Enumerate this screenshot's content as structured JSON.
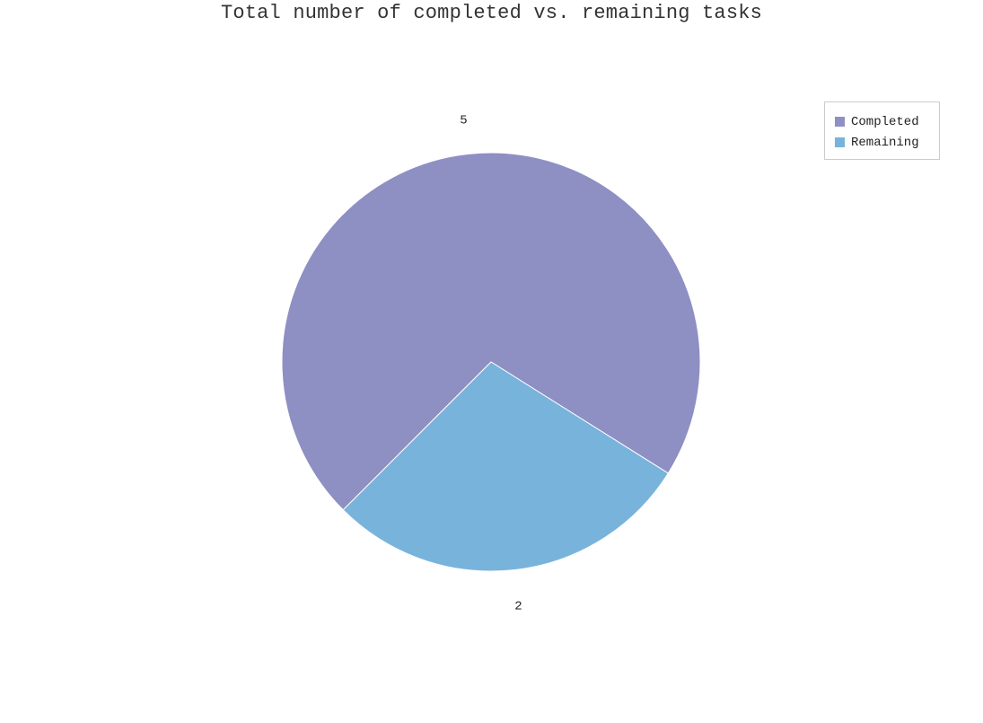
{
  "chart_data": {
    "type": "pie",
    "title": "Total number of completed vs. remaining tasks",
    "categories": [
      "Completed",
      "Remaining"
    ],
    "values": [
      5,
      2
    ],
    "colors": [
      "#8e8fc3",
      "#78b3dc"
    ],
    "data_labels": [
      "5",
      "2"
    ],
    "legend": {
      "placement": "top-right",
      "entries": [
        "Completed",
        "Remaining"
      ]
    }
  }
}
